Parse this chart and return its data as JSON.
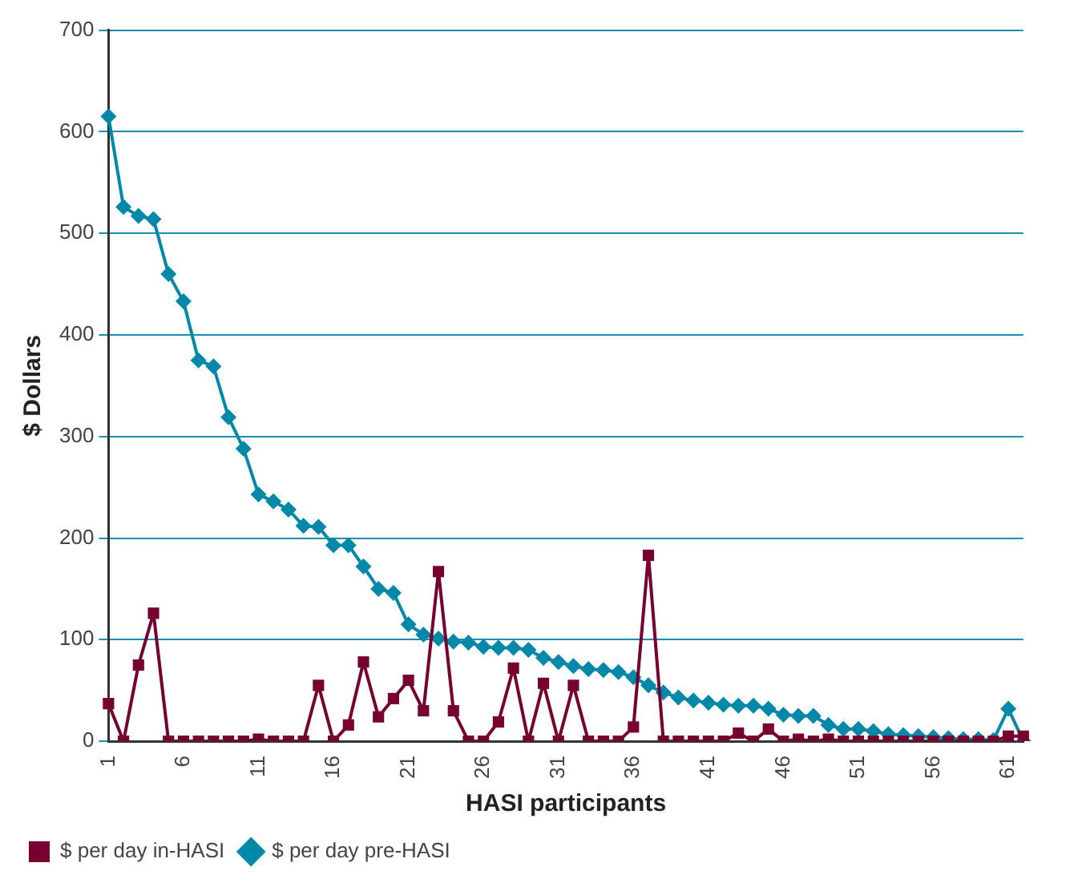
{
  "chart_data": {
    "type": "line",
    "xlabel": "HASI participants",
    "ylabel": "$ Dollars",
    "categories": [
      "1",
      null,
      null,
      null,
      null,
      "6",
      null,
      null,
      null,
      null,
      "11",
      null,
      null,
      null,
      null,
      "16",
      null,
      null,
      null,
      null,
      "21",
      null,
      null,
      null,
      null,
      "26",
      null,
      null,
      null,
      null,
      "31",
      null,
      null,
      null,
      null,
      "36",
      null,
      null,
      null,
      null,
      "41",
      null,
      null,
      null,
      null,
      "46",
      null,
      null,
      null,
      null,
      "51",
      null,
      null,
      null,
      null,
      "56",
      null,
      null,
      null,
      null,
      "61",
      null
    ],
    "series": [
      {
        "name": "$ per day pre-HASI",
        "color": "#0088a8",
        "marker": "diamond",
        "values": [
          615,
          526,
          517,
          514,
          460,
          433,
          375,
          369,
          319,
          288,
          243,
          236,
          228,
          212,
          211,
          193,
          193,
          172,
          150,
          146,
          115,
          105,
          101,
          98,
          97,
          93,
          92,
          92,
          90,
          82,
          78,
          74,
          71,
          70,
          68,
          63,
          55,
          48,
          43,
          40,
          38,
          36,
          35,
          35,
          32,
          26,
          25,
          25,
          16,
          12,
          12,
          10,
          7,
          6,
          5,
          4,
          3,
          2,
          2,
          1,
          32,
          0
        ]
      },
      {
        "name": "$ per day in-HASI",
        "color": "#760030",
        "marker": "square",
        "values": [
          37,
          0,
          75,
          126,
          0,
          0,
          0,
          0,
          0,
          0,
          2,
          0,
          0,
          0,
          55,
          0,
          16,
          78,
          24,
          42,
          60,
          30,
          167,
          30,
          0,
          0,
          19,
          72,
          0,
          57,
          0,
          55,
          0,
          0,
          0,
          14,
          183,
          0,
          0,
          0,
          0,
          0,
          8,
          0,
          12,
          0,
          2,
          0,
          2,
          0,
          0,
          0,
          0,
          0,
          0,
          0,
          0,
          0,
          0,
          0,
          5,
          5
        ]
      }
    ],
    "ylim": [
      0,
      700
    ],
    "yticks": [
      0,
      100,
      200,
      300,
      400,
      500,
      600,
      700
    ],
    "grid": "y",
    "legend": "bottom",
    "line_style": "solid"
  }
}
